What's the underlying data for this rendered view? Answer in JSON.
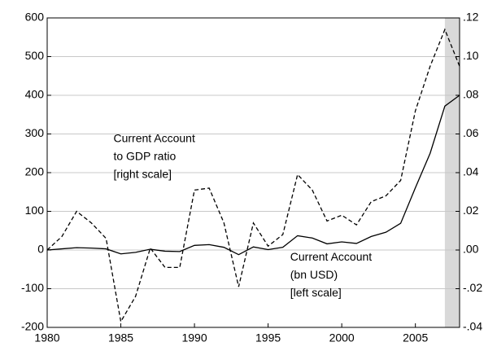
{
  "chart_data": {
    "type": "line",
    "x": [
      1980,
      1981,
      1982,
      1983,
      1984,
      1985,
      1986,
      1987,
      1988,
      1989,
      1990,
      1991,
      1992,
      1993,
      1994,
      1995,
      1996,
      1997,
      1998,
      1999,
      2000,
      2001,
      2002,
      2003,
      2004,
      2005,
      2006,
      2007,
      2008
    ],
    "xlim": [
      1980,
      2008
    ],
    "xticks": [
      1980,
      1985,
      1990,
      1995,
      2000,
      2005
    ],
    "ylim": [
      -200,
      600
    ],
    "yticks": [
      -200,
      -100,
      0,
      100,
      200,
      300,
      400,
      500,
      600
    ],
    "y2lim": [
      -0.04,
      0.12
    ],
    "y2ticks": [
      {
        "value": -0.04,
        "label": "-.04"
      },
      {
        "value": -0.02,
        "label": "-.02"
      },
      {
        "value": 0,
        "label": ".00"
      },
      {
        "value": 0.02,
        "label": ".02"
      },
      {
        "value": 0.04,
        "label": ".04"
      },
      {
        "value": 0.06,
        "label": ".06"
      },
      {
        "value": 0.08,
        "label": ".08"
      },
      {
        "value": 0.1,
        "label": ".10"
      },
      {
        "value": 0.12,
        "label": ".12"
      }
    ],
    "grid": true,
    "shade_x": [
      2007,
      2008
    ],
    "shade_color": "#d9d9d9",
    "series": [
      {
        "color": "#000000",
        "dash": false,
        "values": [
          0,
          3,
          6,
          5,
          3,
          -10,
          -6,
          2,
          -3,
          -4,
          12,
          14,
          7,
          -12,
          8,
          1,
          7,
          37,
          31,
          16,
          21,
          17,
          35,
          46,
          69,
          161,
          250,
          372,
          400
        ]
      },
      {
        "color": "#000000",
        "dash": true,
        "axis": "y2",
        "values": [
          0,
          0.007,
          0.02,
          0.014,
          0.006,
          -0.037,
          -0.024,
          0.001,
          -0.009,
          -0.009,
          0.031,
          0.032,
          0.014,
          -0.019,
          0.014,
          0.002,
          0.008,
          0.039,
          0.031,
          0.015,
          0.018,
          0.013,
          0.025,
          0.028,
          0.036,
          0.072,
          0.095,
          0.114,
          0.095
        ]
      }
    ],
    "annotations": [
      {
        "lines": [
          "Current Account",
          "to GDP ratio",
          "[right scale]"
        ],
        "x": 1984.5,
        "y": 287
      },
      {
        "lines": [
          "Current Account",
          "(bn USD)",
          "[left scale]"
        ],
        "x": 1996.5,
        "y": -20
      }
    ]
  }
}
